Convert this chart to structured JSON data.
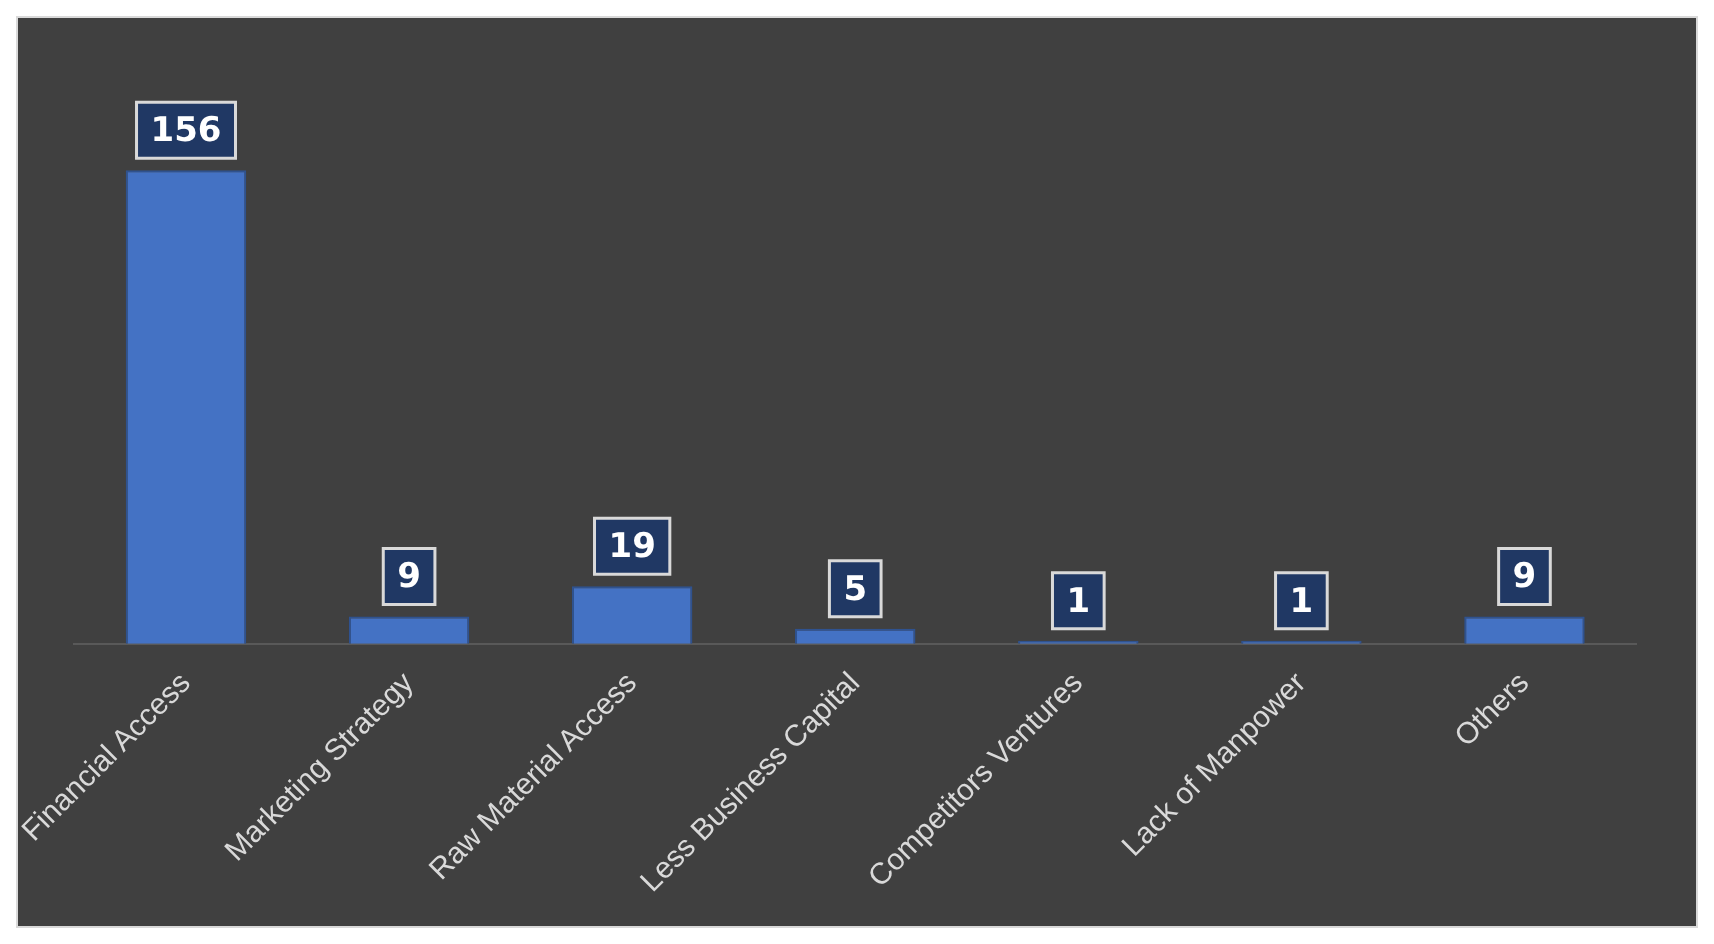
{
  "chart_data": {
    "type": "bar",
    "categories": [
      "Financial Access",
      "Marketing Strategy",
      "Raw Material Access",
      "Less Business Capital",
      "Competitors Ventures",
      "Lack of Manpower",
      "Others"
    ],
    "values": [
      156,
      9,
      19,
      5,
      1,
      1,
      9
    ],
    "color": "#4472c4",
    "data_labels": true,
    "grid": false,
    "legend": false
  }
}
